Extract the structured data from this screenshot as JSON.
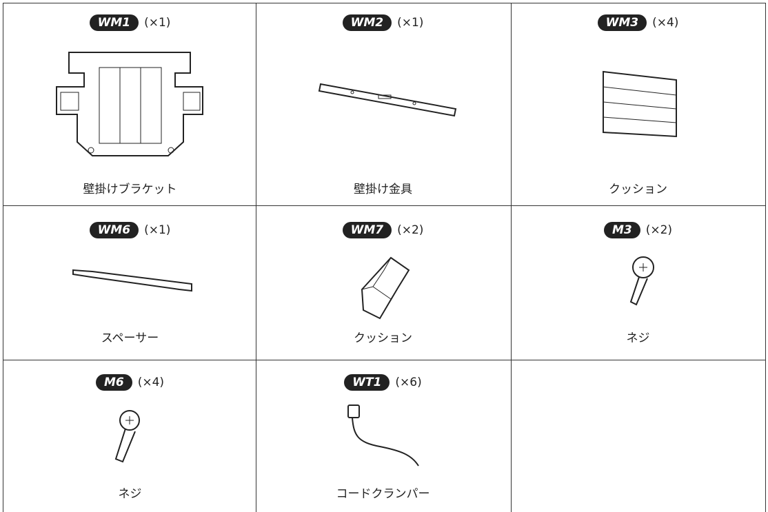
{
  "parts": [
    {
      "badge": "WM1",
      "qty": "(×1)",
      "name": "壁掛けブラケット"
    },
    {
      "badge": "WM2",
      "qty": "(×1)",
      "name": "壁掛け金具"
    },
    {
      "badge": "WM3",
      "qty": "(×4)",
      "name": "クッション"
    },
    {
      "badge": "WM6",
      "qty": "(×1)",
      "name": "スペーサー"
    },
    {
      "badge": "WM7",
      "qty": "(×2)",
      "name": "クッション"
    },
    {
      "badge": "M3",
      "qty": "(×2)",
      "name": "ネジ"
    },
    {
      "badge": "M6",
      "qty": "(×4)",
      "name": "ネジ"
    },
    {
      "badge": "WT1",
      "qty": "(×6)",
      "name": "コードクランパー"
    }
  ]
}
